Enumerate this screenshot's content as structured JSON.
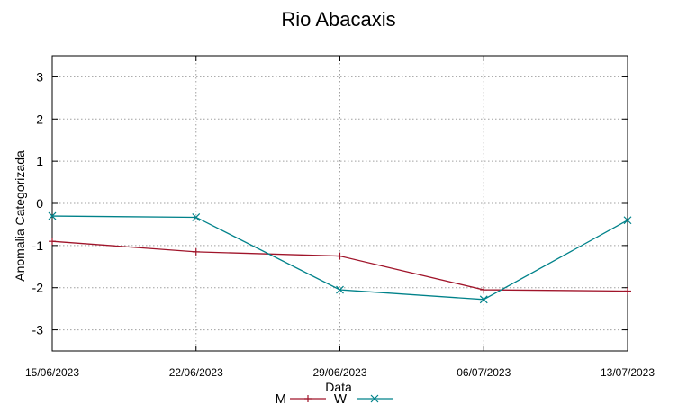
{
  "chart_data": {
    "type": "line",
    "title": "Rio Abacaxis",
    "xlabel": "Data",
    "ylabel": "Anomalia Categorizada",
    "x": [
      "15/06/2023",
      "22/06/2023",
      "29/06/2023",
      "06/07/2023",
      "13/07/2023"
    ],
    "ylim": [
      -3.5,
      3.5
    ],
    "yticks": [
      "3",
      "2",
      "1",
      "0",
      "-1",
      "-2",
      "-3"
    ],
    "ytick_values": [
      3,
      2,
      1,
      0,
      -1,
      -2,
      -3
    ],
    "grid": true,
    "legend": "bottom-center",
    "series": [
      {
        "name": "M",
        "color": "#a0142a",
        "marker": "plus",
        "values": [
          -0.9,
          -1.15,
          -1.25,
          -2.05,
          -2.08
        ]
      },
      {
        "name": "W",
        "color": "#00828a",
        "marker": "cross",
        "values": [
          -0.3,
          -0.33,
          -2.05,
          -2.28,
          -0.4
        ]
      }
    ]
  }
}
